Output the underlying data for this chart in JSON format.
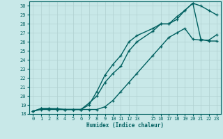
{
  "xlabel": "Humidex (Indice chaleur)",
  "ylabel": "",
  "bg_color": "#c8e8e8",
  "line_color": "#006060",
  "grid_color": "#b0d0d0",
  "xlim": [
    -0.5,
    23.5
  ],
  "ylim": [
    18,
    30.5
  ],
  "xticks": [
    0,
    1,
    2,
    3,
    4,
    5,
    6,
    7,
    8,
    9,
    10,
    11,
    12,
    13,
    15,
    16,
    17,
    18,
    19,
    20,
    21,
    22,
    23
  ],
  "yticks": [
    18,
    19,
    20,
    21,
    22,
    23,
    24,
    25,
    26,
    27,
    28,
    29,
    30
  ],
  "line1_x": [
    0,
    1,
    2,
    3,
    4,
    5,
    6,
    7,
    8,
    9,
    10,
    11,
    12,
    13,
    15,
    16,
    17,
    18,
    19,
    20,
    21,
    22,
    23
  ],
  "line1_y": [
    18.3,
    18.6,
    18.6,
    18.5,
    18.5,
    18.5,
    18.5,
    19.0,
    20.5,
    22.3,
    23.5,
    24.5,
    26.0,
    26.7,
    27.5,
    28.0,
    28.0,
    28.5,
    29.5,
    30.3,
    30.0,
    29.5,
    29.0
  ],
  "line2_x": [
    0,
    1,
    2,
    3,
    4,
    5,
    6,
    7,
    8,
    9,
    10,
    11,
    12,
    13,
    15,
    16,
    17,
    18,
    19,
    20,
    21,
    22,
    23
  ],
  "line2_y": [
    18.3,
    18.6,
    18.6,
    18.6,
    18.5,
    18.5,
    18.5,
    19.2,
    20.0,
    21.5,
    22.5,
    23.3,
    25.0,
    26.0,
    27.2,
    28.0,
    28.0,
    28.8,
    29.5,
    30.3,
    26.3,
    26.1,
    26.1
  ],
  "line3_x": [
    0,
    1,
    2,
    3,
    4,
    5,
    6,
    7,
    8,
    9,
    10,
    11,
    12,
    13,
    15,
    16,
    17,
    18,
    19,
    20,
    21,
    22,
    23
  ],
  "line3_y": [
    18.3,
    18.5,
    18.5,
    18.5,
    18.5,
    18.5,
    18.5,
    18.5,
    18.5,
    18.8,
    19.5,
    20.5,
    21.5,
    22.5,
    24.5,
    25.5,
    26.5,
    27.0,
    27.5,
    26.3,
    26.2,
    26.2,
    26.8
  ]
}
